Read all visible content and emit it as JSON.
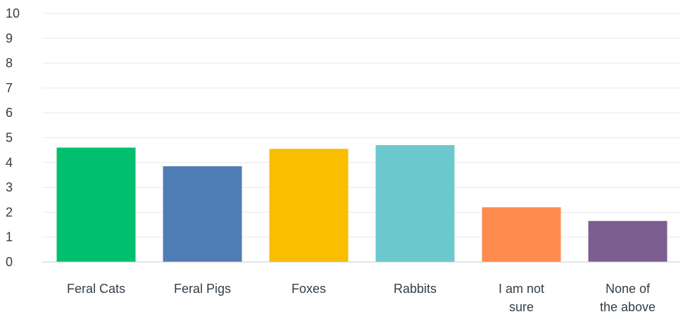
{
  "chart_data": {
    "type": "bar",
    "categories": [
      "Feral Cats",
      "Feral Pigs",
      "Foxes",
      "Rabbits",
      "I am not sure",
      "None of the above"
    ],
    "category_lines": [
      [
        "Feral Cats"
      ],
      [
        "Feral Pigs"
      ],
      [
        "Foxes"
      ],
      [
        "Rabbits"
      ],
      [
        "I am not",
        "sure"
      ],
      [
        "None of",
        "the above"
      ]
    ],
    "values": [
      4.6,
      3.85,
      4.55,
      4.7,
      2.2,
      1.65
    ],
    "colors": [
      "#00bf6f",
      "#507cb6",
      "#f9be00",
      "#6bc8cd",
      "#ff8b4f",
      "#7d5e90"
    ],
    "ylim": [
      0,
      10
    ],
    "yticks": [
      0,
      1,
      2,
      3,
      4,
      5,
      6,
      7,
      8,
      9,
      10
    ],
    "grid": true,
    "title": "",
    "xlabel": "",
    "ylabel": ""
  }
}
